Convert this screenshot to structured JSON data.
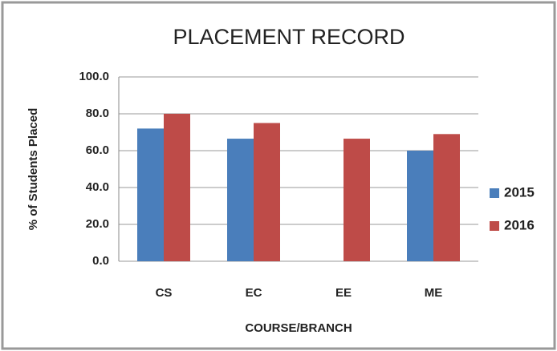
{
  "chart_data": {
    "type": "bar",
    "title": "PLACEMENT RECORD",
    "x_label": "COURSE/BRANCH",
    "y_label": "% of Students Placed",
    "categories": [
      "CS",
      "EC",
      "EE",
      "ME"
    ],
    "series": [
      {
        "name": "2015",
        "color": "#4a7ebb",
        "values": [
          72,
          66.5,
          null,
          60
        ]
      },
      {
        "name": "2016",
        "color": "#be4b48",
        "values": [
          80,
          75,
          66.5,
          69
        ]
      }
    ],
    "ylim": [
      0,
      100
    ],
    "yticks": [
      {
        "value": 0,
        "label": "0.0"
      },
      {
        "value": 20,
        "label": "20.0"
      },
      {
        "value": 40,
        "label": "40.0"
      },
      {
        "value": 60,
        "label": "60.0"
      },
      {
        "value": 80,
        "label": "80.0"
      },
      {
        "value": 100,
        "label": "100.0"
      }
    ],
    "grid": true,
    "legend": "right"
  }
}
